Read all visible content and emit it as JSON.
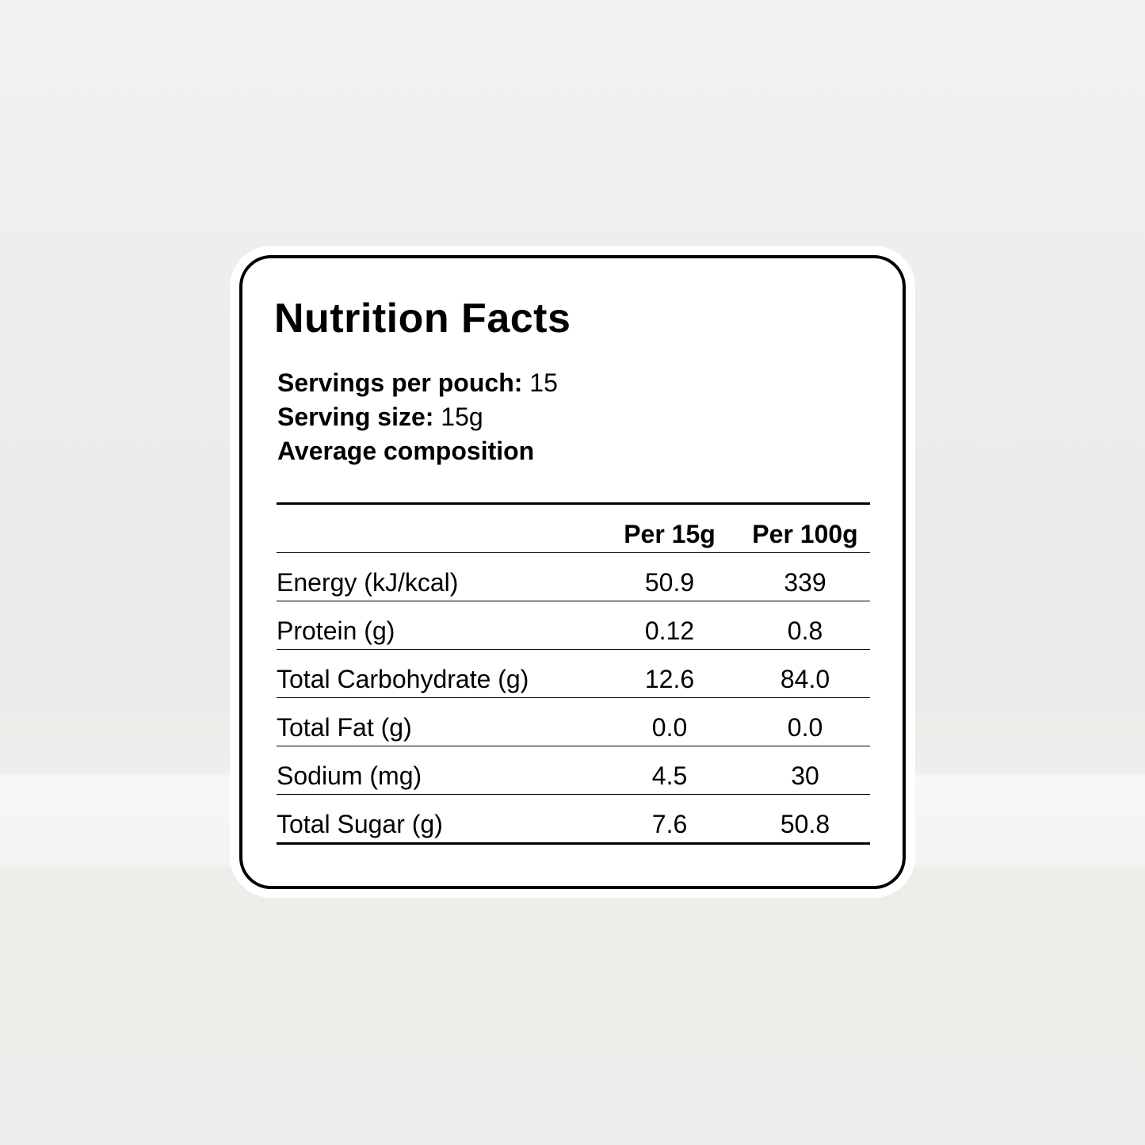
{
  "title": "Nutrition Facts",
  "servings_per_pouch": {
    "label": "Servings per pouch:",
    "value": "15"
  },
  "serving_size": {
    "label": "Serving size:",
    "value": "15g"
  },
  "composition_label": "Average composition",
  "table": {
    "columns": [
      "",
      "Per 15g",
      "Per 100g"
    ],
    "rows": [
      [
        "Energy (kJ/kcal)",
        "50.9",
        "339"
      ],
      [
        "Protein (g)",
        "0.12",
        "0.8"
      ],
      [
        "Total Carbohydrate (g)",
        "12.6",
        "84.0"
      ],
      [
        "Total Fat (g)",
        "0.0",
        "0.0"
      ],
      [
        "Sodium (mg)",
        "4.5",
        "30"
      ],
      [
        "Total Sugar (g)",
        "7.6",
        "50.8"
      ]
    ]
  }
}
